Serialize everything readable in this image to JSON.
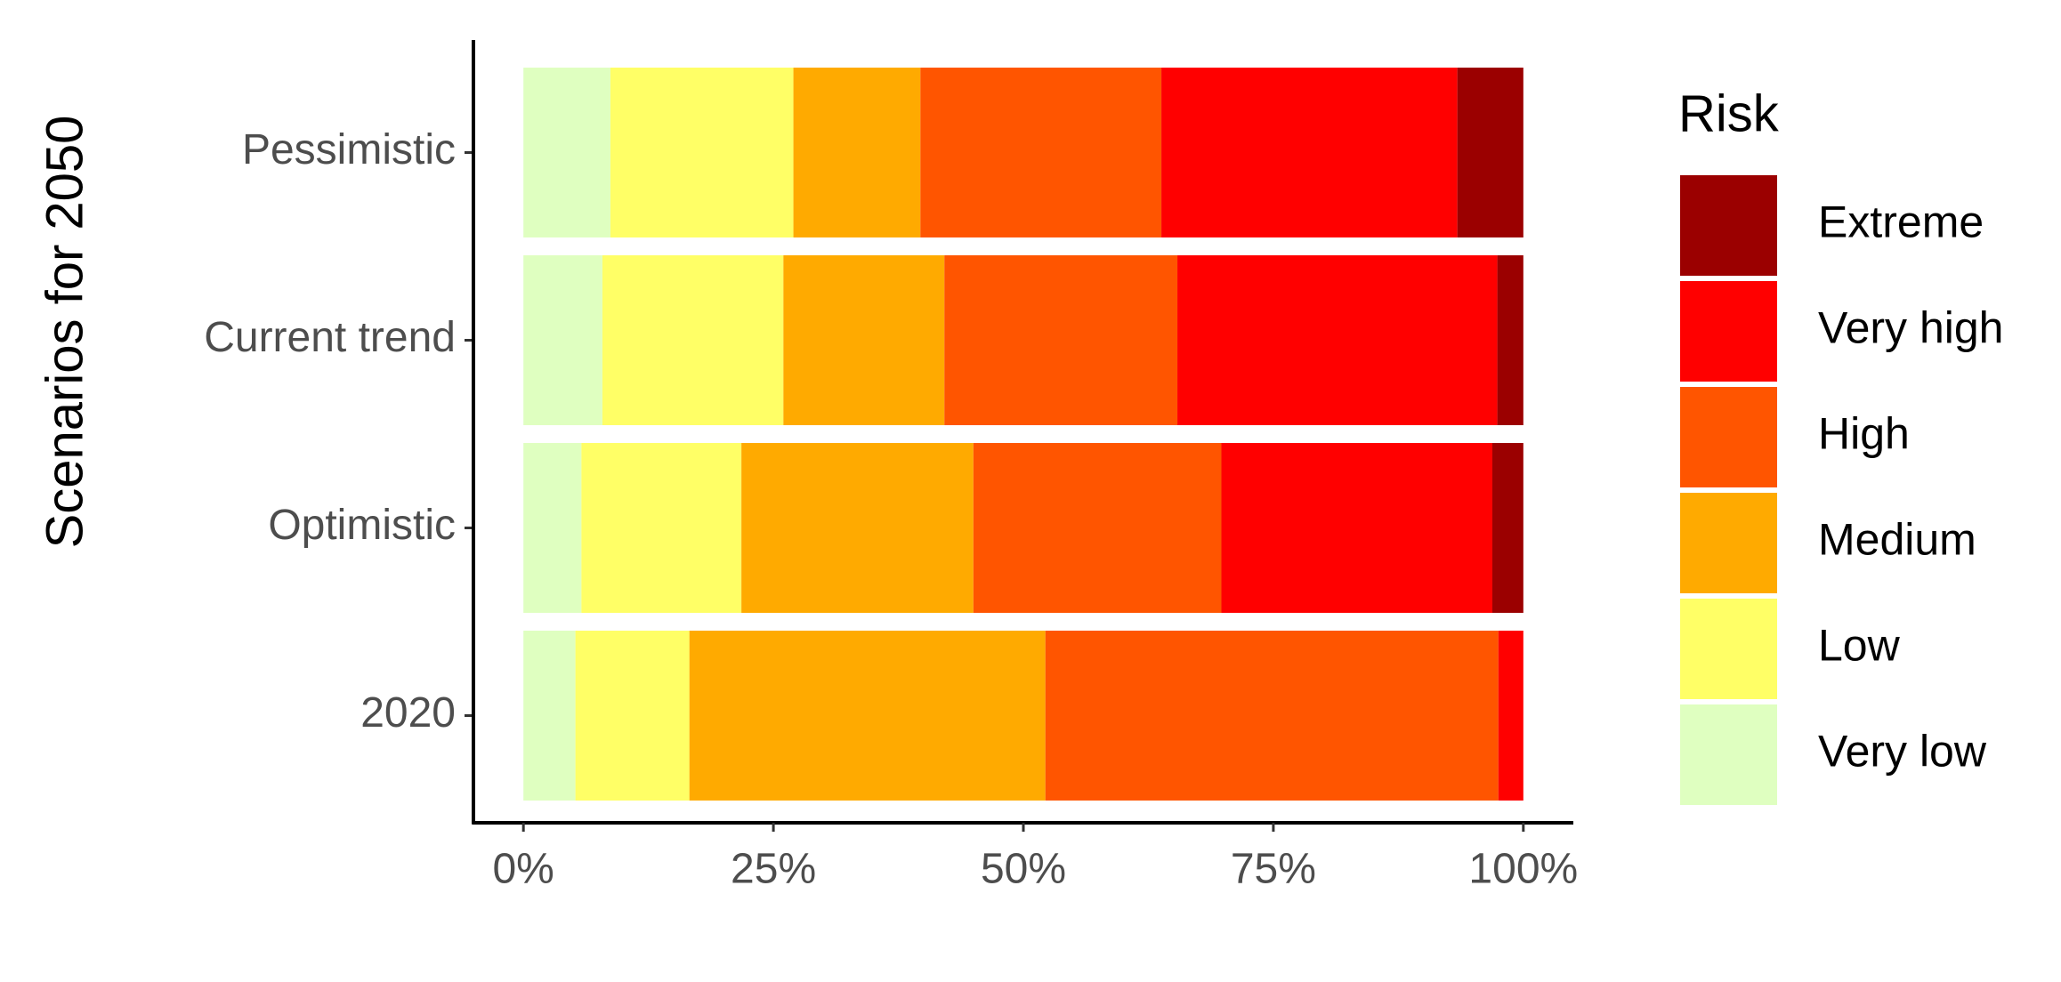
{
  "chart_data": {
    "type": "stacked-bar-horizontal",
    "y_axis_title": "Scenarios for 2050",
    "legend_title": "Risk",
    "legend": "right",
    "categories": [
      "Pessimistic",
      "Current trend",
      "Optimistic",
      "2020"
    ],
    "series": [
      {
        "name": "Very low",
        "color": "#dfffc0",
        "values": [
          8.7,
          7.9,
          5.8,
          5.2
        ]
      },
      {
        "name": "Low",
        "color": "#ffff66",
        "values": [
          18.3,
          18.1,
          16.0,
          11.4
        ]
      },
      {
        "name": "Medium",
        "color": "#ffaa00",
        "values": [
          12.7,
          16.1,
          23.2,
          35.6
        ]
      },
      {
        "name": "High",
        "color": "#ff5500",
        "values": [
          24.1,
          23.3,
          24.8,
          45.3
        ]
      },
      {
        "name": "Very high",
        "color": "#ff0000",
        "values": [
          29.6,
          32.0,
          27.1,
          2.5
        ]
      },
      {
        "name": "Extreme",
        "color": "#9b0000",
        "values": [
          6.6,
          2.6,
          3.1,
          0
        ]
      }
    ],
    "xlim": [
      -5,
      105
    ],
    "xticks": [
      {
        "value": 0,
        "label": "0%"
      },
      {
        "value": 25,
        "label": "25%"
      },
      {
        "value": 50,
        "label": "50%"
      },
      {
        "value": 75,
        "label": "75%"
      },
      {
        "value": 100,
        "label": "100%"
      }
    ]
  }
}
